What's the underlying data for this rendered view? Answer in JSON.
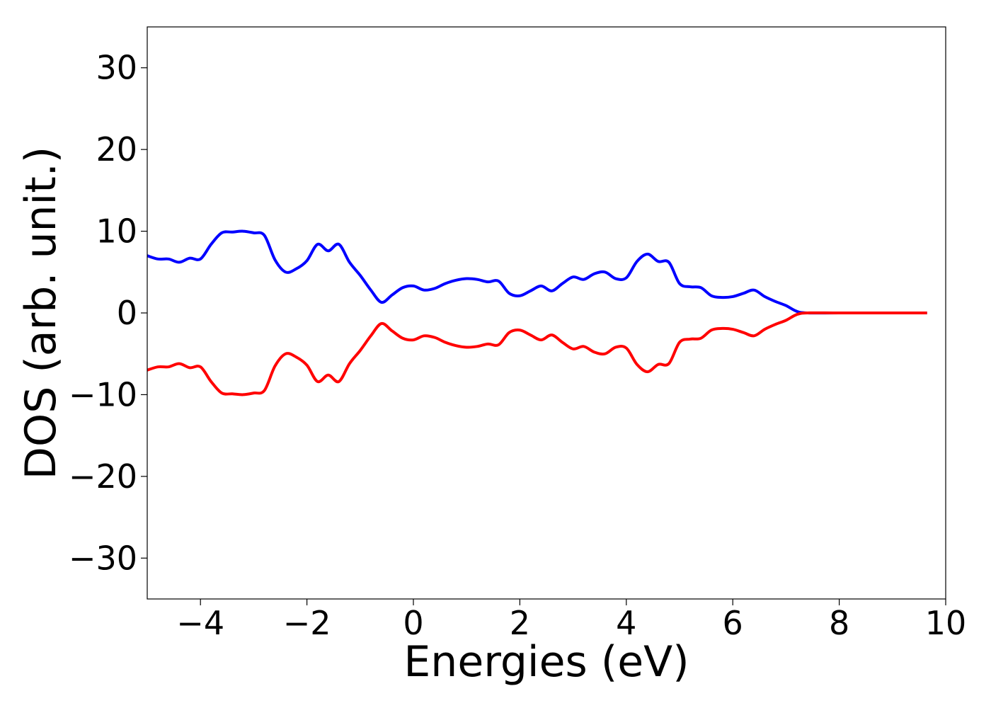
{
  "chart_data": {
    "type": "line",
    "title": "",
    "xlabel": "Energies (eV)",
    "ylabel": "DOS (arb. unit.)",
    "xlim": [
      -5,
      10
    ],
    "ylim": [
      -35,
      35
    ],
    "grid": false,
    "legend": "none",
    "x_ticks": [
      "−4",
      "−2",
      "0",
      "2",
      "4",
      "6",
      "8",
      "10"
    ],
    "x_tick_values": [
      -4,
      -2,
      0,
      2,
      4,
      6,
      8,
      10
    ],
    "y_ticks": [
      "30",
      "20",
      "10",
      "0",
      "−10",
      "−20",
      "−30"
    ],
    "y_tick_values": [
      30,
      20,
      10,
      0,
      -10,
      -20,
      -30
    ],
    "series": [
      {
        "color": "#0000ff",
        "points": [
          [
            -5.0,
            7.0
          ],
          [
            -4.8,
            6.6
          ],
          [
            -4.6,
            6.6
          ],
          [
            -4.4,
            6.2
          ],
          [
            -4.2,
            6.7
          ],
          [
            -4.0,
            6.6
          ],
          [
            -3.8,
            8.4
          ],
          [
            -3.6,
            9.8
          ],
          [
            -3.4,
            9.9
          ],
          [
            -3.2,
            10.0
          ],
          [
            -3.0,
            9.8
          ],
          [
            -2.8,
            9.5
          ],
          [
            -2.6,
            6.5
          ],
          [
            -2.4,
            5.0
          ],
          [
            -2.2,
            5.4
          ],
          [
            -2.0,
            6.4
          ],
          [
            -1.8,
            8.4
          ],
          [
            -1.6,
            7.6
          ],
          [
            -1.4,
            8.4
          ],
          [
            -1.2,
            6.2
          ],
          [
            -1.0,
            4.6
          ],
          [
            -0.8,
            2.8
          ],
          [
            -0.6,
            1.3
          ],
          [
            -0.4,
            2.2
          ],
          [
            -0.2,
            3.1
          ],
          [
            0.0,
            3.3
          ],
          [
            0.2,
            2.8
          ],
          [
            0.4,
            3.0
          ],
          [
            0.6,
            3.6
          ],
          [
            0.8,
            4.0
          ],
          [
            1.0,
            4.2
          ],
          [
            1.2,
            4.1
          ],
          [
            1.4,
            3.8
          ],
          [
            1.6,
            3.9
          ],
          [
            1.8,
            2.4
          ],
          [
            2.0,
            2.1
          ],
          [
            2.2,
            2.7
          ],
          [
            2.4,
            3.3
          ],
          [
            2.6,
            2.7
          ],
          [
            2.8,
            3.6
          ],
          [
            3.0,
            4.4
          ],
          [
            3.2,
            4.1
          ],
          [
            3.4,
            4.8
          ],
          [
            3.6,
            5.0
          ],
          [
            3.8,
            4.2
          ],
          [
            4.0,
            4.3
          ],
          [
            4.2,
            6.3
          ],
          [
            4.4,
            7.2
          ],
          [
            4.6,
            6.3
          ],
          [
            4.8,
            6.2
          ],
          [
            5.0,
            3.6
          ],
          [
            5.2,
            3.2
          ],
          [
            5.4,
            3.1
          ],
          [
            5.6,
            2.1
          ],
          [
            5.8,
            1.9
          ],
          [
            6.0,
            2.0
          ],
          [
            6.2,
            2.4
          ],
          [
            6.4,
            2.8
          ],
          [
            6.6,
            2.0
          ],
          [
            6.8,
            1.4
          ],
          [
            7.0,
            0.9
          ],
          [
            7.2,
            0.2
          ],
          [
            7.4,
            0.0
          ],
          [
            8.0,
            0.0
          ],
          [
            9.0,
            0.0
          ],
          [
            9.65,
            0.0
          ]
        ]
      },
      {
        "color": "#ff0000",
        "points": [
          [
            -5.0,
            -7.0
          ],
          [
            -4.8,
            -6.6
          ],
          [
            -4.6,
            -6.6
          ],
          [
            -4.4,
            -6.2
          ],
          [
            -4.2,
            -6.7
          ],
          [
            -4.0,
            -6.6
          ],
          [
            -3.8,
            -8.4
          ],
          [
            -3.6,
            -9.8
          ],
          [
            -3.4,
            -9.9
          ],
          [
            -3.2,
            -10.0
          ],
          [
            -3.0,
            -9.8
          ],
          [
            -2.8,
            -9.5
          ],
          [
            -2.6,
            -6.5
          ],
          [
            -2.4,
            -5.0
          ],
          [
            -2.2,
            -5.4
          ],
          [
            -2.0,
            -6.4
          ],
          [
            -1.8,
            -8.4
          ],
          [
            -1.6,
            -7.6
          ],
          [
            -1.4,
            -8.4
          ],
          [
            -1.2,
            -6.2
          ],
          [
            -1.0,
            -4.6
          ],
          [
            -0.8,
            -2.8
          ],
          [
            -0.6,
            -1.3
          ],
          [
            -0.4,
            -2.2
          ],
          [
            -0.2,
            -3.1
          ],
          [
            0.0,
            -3.3
          ],
          [
            0.2,
            -2.8
          ],
          [
            0.4,
            -3.0
          ],
          [
            0.6,
            -3.6
          ],
          [
            0.8,
            -4.0
          ],
          [
            1.0,
            -4.2
          ],
          [
            1.2,
            -4.1
          ],
          [
            1.4,
            -3.8
          ],
          [
            1.6,
            -3.9
          ],
          [
            1.8,
            -2.4
          ],
          [
            2.0,
            -2.1
          ],
          [
            2.2,
            -2.7
          ],
          [
            2.4,
            -3.3
          ],
          [
            2.6,
            -2.7
          ],
          [
            2.8,
            -3.6
          ],
          [
            3.0,
            -4.4
          ],
          [
            3.2,
            -4.1
          ],
          [
            3.4,
            -4.8
          ],
          [
            3.6,
            -5.0
          ],
          [
            3.8,
            -4.2
          ],
          [
            4.0,
            -4.3
          ],
          [
            4.2,
            -6.3
          ],
          [
            4.4,
            -7.2
          ],
          [
            4.6,
            -6.3
          ],
          [
            4.8,
            -6.2
          ],
          [
            5.0,
            -3.6
          ],
          [
            5.2,
            -3.2
          ],
          [
            5.4,
            -3.1
          ],
          [
            5.6,
            -2.1
          ],
          [
            5.8,
            -1.9
          ],
          [
            6.0,
            -2.0
          ],
          [
            6.2,
            -2.4
          ],
          [
            6.4,
            -2.8
          ],
          [
            6.6,
            -2.0
          ],
          [
            6.8,
            -1.4
          ],
          [
            7.0,
            -0.9
          ],
          [
            7.2,
            -0.2
          ],
          [
            7.4,
            0.0
          ],
          [
            8.0,
            0.0
          ],
          [
            9.0,
            0.0
          ],
          [
            9.65,
            0.0
          ]
        ]
      }
    ]
  }
}
